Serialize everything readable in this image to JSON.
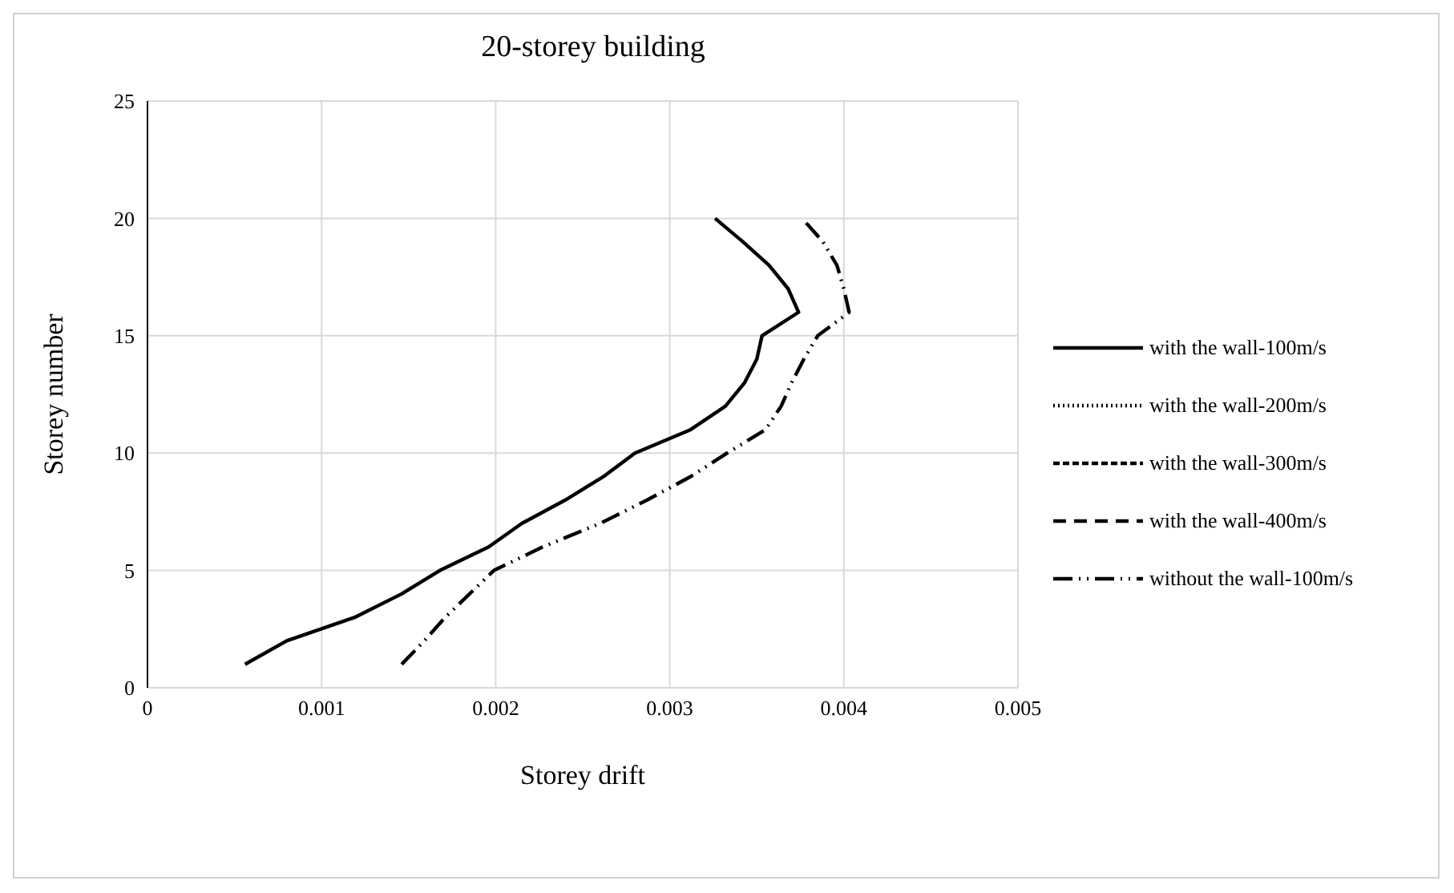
{
  "chart_data": {
    "type": "line",
    "title": "20-storey building",
    "xlabel": "Storey drift",
    "ylabel": "Storey number",
    "xlim": [
      0,
      0.005
    ],
    "xticks": [
      0,
      0.001,
      0.002,
      0.003,
      0.004,
      0.005
    ],
    "ylim": [
      0,
      25
    ],
    "yticks": [
      0,
      5,
      10,
      15,
      20,
      25
    ],
    "grid": true,
    "legend": "right",
    "marker": "none",
    "series": [
      {
        "name": "with the wall-100m/s",
        "color": "#000000",
        "line_style": "solid",
        "x": [
          0.00056,
          0.0008,
          0.00119,
          0.00146,
          0.00168,
          0.00196,
          0.00215,
          0.0024,
          0.00262,
          0.0028,
          0.00312,
          0.00332,
          0.00343,
          0.0035,
          0.00353,
          0.00374,
          0.00368,
          0.00357,
          0.00342,
          0.00326
        ],
        "values": [
          1,
          2,
          3,
          4,
          5,
          6,
          7,
          8,
          9,
          10,
          11,
          12,
          13,
          14,
          15,
          16,
          17,
          18,
          19,
          20
        ]
      },
      {
        "name": "with the wall-200m/s",
        "color": "#000000",
        "line_style": "dotted",
        "values": [
          null,
          null,
          null,
          null,
          null,
          null,
          null,
          null,
          null,
          null,
          null,
          null,
          null,
          null,
          null,
          null,
          null,
          null,
          null,
          null
        ]
      },
      {
        "name": "with the wall-300m/s",
        "color": "#000000",
        "line_style": "dashed",
        "values": [
          null,
          null,
          null,
          null,
          null,
          null,
          null,
          null,
          null,
          null,
          null,
          null,
          null,
          null,
          null,
          null,
          null,
          null,
          null,
          null
        ]
      },
      {
        "name": "with the wall-400m/s",
        "color": "#000000",
        "line_style": "longdash",
        "values": [
          null,
          null,
          null,
          null,
          null,
          null,
          null,
          null,
          null,
          null,
          null,
          null,
          null,
          null,
          null,
          null,
          null,
          null,
          null,
          null
        ]
      },
      {
        "name": "without the wall-100m/s",
        "color": "#000000",
        "line_style": "dashdot",
        "x": [
          0.00146,
          0.00159,
          0.00171,
          0.00185,
          0.00199,
          0.00227,
          0.0026,
          0.00287,
          0.00312,
          0.00333,
          0.00355,
          0.00364,
          0.0037,
          0.00377,
          0.00385,
          0.00403,
          0.004,
          0.00396,
          0.00388,
          0.00376
        ],
        "values": [
          1,
          2,
          3,
          4,
          5,
          6,
          7,
          8,
          9,
          10,
          11,
          12,
          13,
          14,
          15,
          16,
          17,
          18,
          19,
          20
        ]
      }
    ]
  }
}
